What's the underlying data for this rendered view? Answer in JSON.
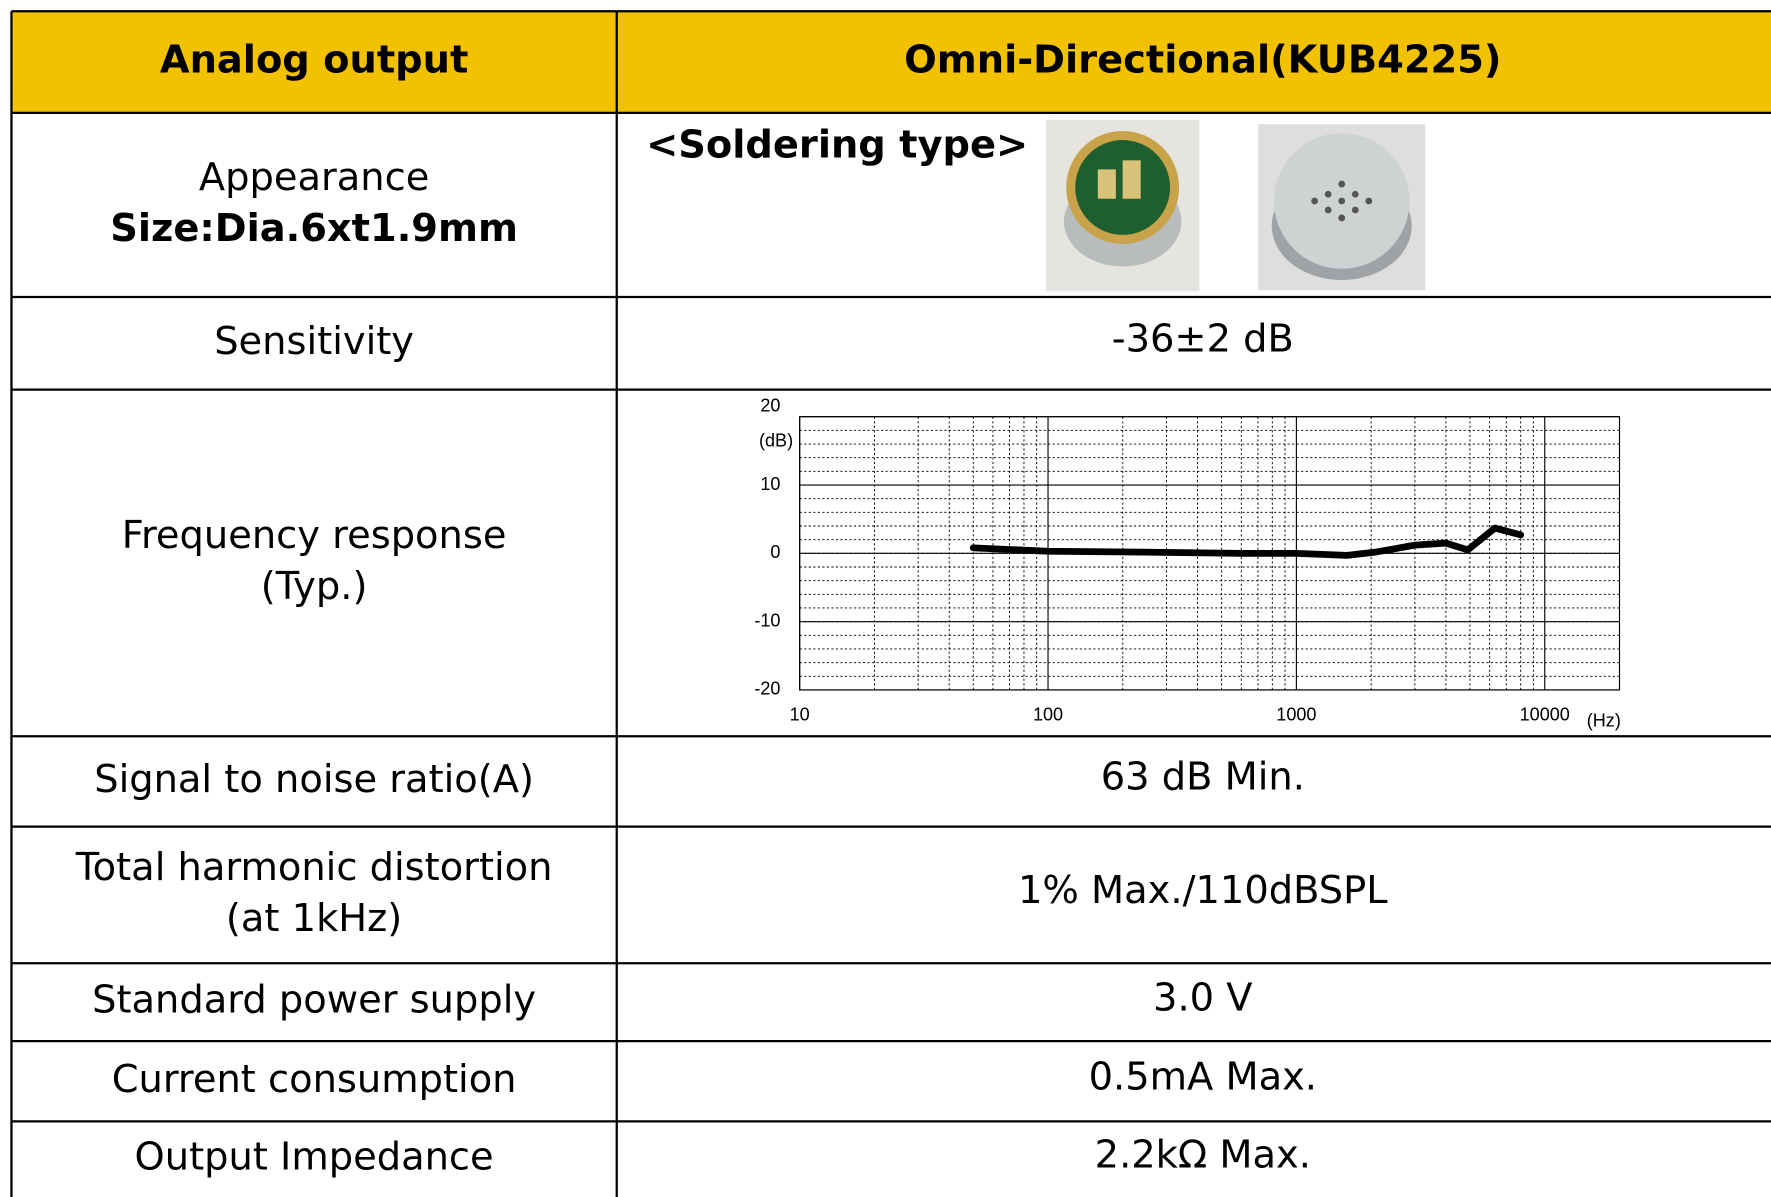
{
  "table": {
    "header": [
      "Analog output",
      "Omni-Directional(KUB4225)"
    ],
    "rows": [
      {
        "label": [
          "Appearance",
          "Size:Dia.6xt1.9mm"
        ],
        "value": "<Soldering type>"
      },
      {
        "label": [
          "Sensitivity"
        ],
        "value": "-36±2 dB"
      },
      {
        "label": [
          "Frequency response",
          "(Typ.)"
        ]
      },
      {
        "label": [
          "Signal to noise ratio(A)"
        ],
        "value": "63 dB Min."
      },
      {
        "label": [
          "Total harmonic distortion",
          "(at 1kHz)"
        ],
        "value": "1% Max./110dBSPL"
      },
      {
        "label": [
          "Standard power supply"
        ],
        "value": "3.0 V"
      },
      {
        "label": [
          "Current consumption"
        ],
        "value": "0.5mA Max."
      },
      {
        "label": [
          "Output Impedance"
        ],
        "value": "2.2kΩ Max."
      }
    ]
  },
  "chart_data": {
    "type": "line",
    "y_label": "(dB)",
    "x_label": "(Hz)",
    "x_scale": "log",
    "x": [
      50,
      100,
      212,
      600,
      1000,
      1600,
      2100,
      3000,
      4000,
      4900,
      6300,
      8000
    ],
    "values": [
      0.8,
      0.3,
      0.2,
      0,
      0,
      -0.3,
      0.2,
      1.2,
      1.5,
      0.5,
      3.7,
      2.7
    ],
    "color": "#000000",
    "xlim": [
      10,
      20000
    ],
    "xticks": [
      10,
      100,
      1000,
      10000
    ],
    "ylim": [
      -20,
      20
    ],
    "yticks": [
      -20,
      -10,
      0,
      10,
      20
    ],
    "grid": true
  }
}
